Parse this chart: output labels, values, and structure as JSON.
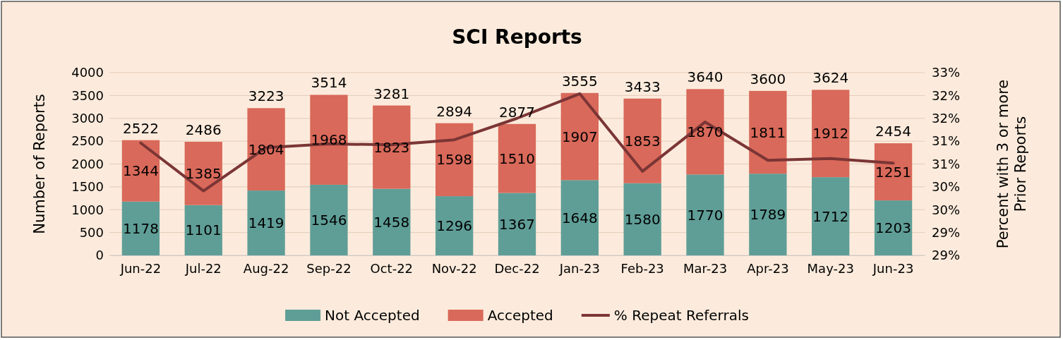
{
  "chart_data": {
    "type": "bar",
    "title": "SCI Reports",
    "ylabel": "Number of Reports",
    "y2label": "Percent with 3 or more Prior Reports",
    "categories": [
      "Jun-22",
      "Jul-22",
      "Aug-22",
      "Sep-22",
      "Oct-22",
      "Nov-22",
      "Dec-22",
      "Jan-23",
      "Feb-23",
      "Mar-23",
      "Apr-23",
      "May-23",
      "Jun-23"
    ],
    "stacked": true,
    "series": [
      {
        "name": "Not Accepted",
        "color": "#5f9e97",
        "values": [
          1178,
          1101,
          1419,
          1546,
          1458,
          1296,
          1367,
          1648,
          1580,
          1770,
          1789,
          1712,
          1203
        ],
        "value_labels": [
          "1178",
          "1101",
          "1419",
          "1546",
          "1458",
          "1296",
          "1367",
          "1648",
          "1580",
          "1770",
          "1789",
          "1712",
          "1203"
        ]
      },
      {
        "name": "Accepted",
        "color": "#d9695a",
        "values": [
          1344,
          1385,
          1804,
          1968,
          1823,
          1598,
          1510,
          1907,
          1853,
          1870,
          1811,
          1912,
          1251
        ],
        "value_labels": [
          "1344",
          "1385",
          "1804",
          "1968",
          "1823",
          "1598",
          "1510",
          "1907",
          "1853",
          "1870",
          "1811",
          "1912",
          "1251"
        ]
      },
      {
        "name": "% Repeat Referrals",
        "type": "line",
        "axis": "y2",
        "color": "#7b3535",
        "values": [
          31.46,
          30.41,
          31.36,
          31.44,
          31.42,
          31.53,
          32.0,
          32.54,
          30.84,
          31.92,
          31.08,
          31.12,
          31.02
        ]
      }
    ],
    "totals": [
      "2522",
      "2486",
      "3223",
      "3514",
      "3281",
      "2894",
      "2877",
      "3555",
      "3433",
      "3640",
      "3600",
      "3624",
      "2454"
    ],
    "ylim": [
      0,
      4000
    ],
    "yticks": [
      0,
      500,
      1000,
      1500,
      2000,
      2500,
      3000,
      3500,
      4000
    ],
    "y2lim": [
      29,
      33
    ],
    "y2ticks": [
      {
        "value": 29,
        "label": "29%"
      },
      {
        "value": 29.5,
        "label": "29%"
      },
      {
        "value": 30,
        "label": "30%"
      },
      {
        "value": 30.5,
        "label": "30%"
      },
      {
        "value": 31,
        "label": "31%"
      },
      {
        "value": 31.5,
        "label": "31%"
      },
      {
        "value": 32,
        "label": "32%"
      },
      {
        "value": 32.5,
        "label": "32%"
      },
      {
        "value": 33,
        "label": "33%"
      }
    ],
    "grid": "y",
    "legend": "bottom",
    "marker": "none",
    "line_style": "solid"
  }
}
